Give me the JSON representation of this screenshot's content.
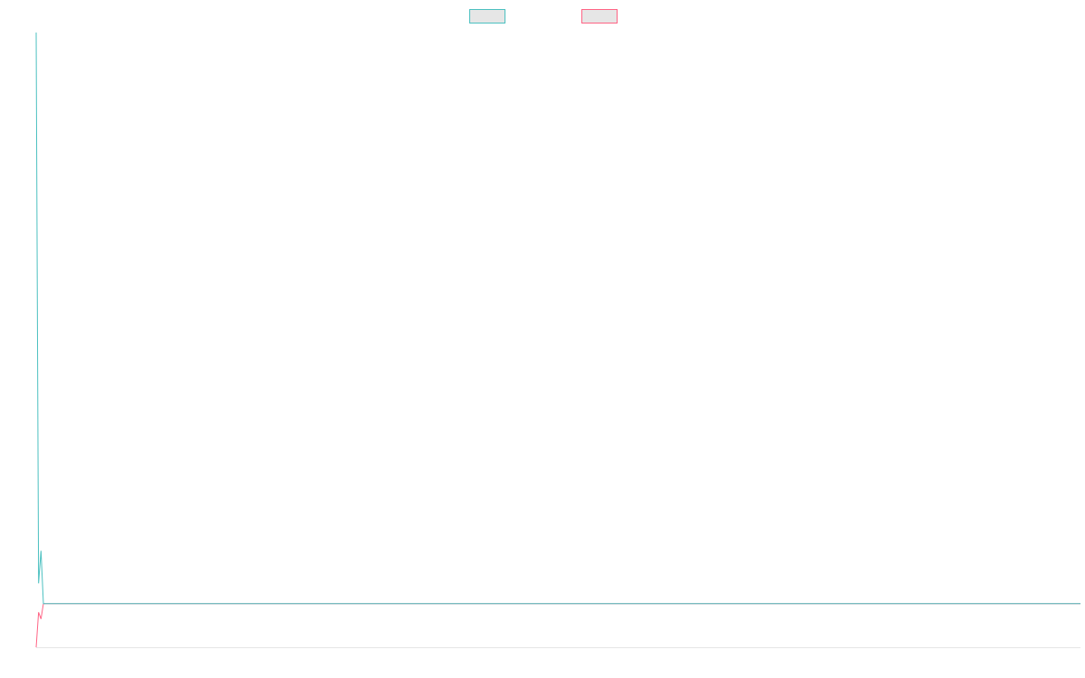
{
  "chart_data": {
    "type": "line",
    "x": [
      0,
      1,
      2,
      3,
      433
    ],
    "xlim": [
      0,
      433
    ],
    "ylim": [
      0,
      100
    ],
    "series": [
      {
        "color": "#4bc0c0",
        "values": [
          100,
          10.4,
          15.7,
          7.1,
          7.1
        ]
      },
      {
        "color": "#ff6384",
        "values": [
          0,
          5.7,
          4.6,
          7.1,
          7.1
        ]
      }
    ],
    "legend": "top"
  }
}
